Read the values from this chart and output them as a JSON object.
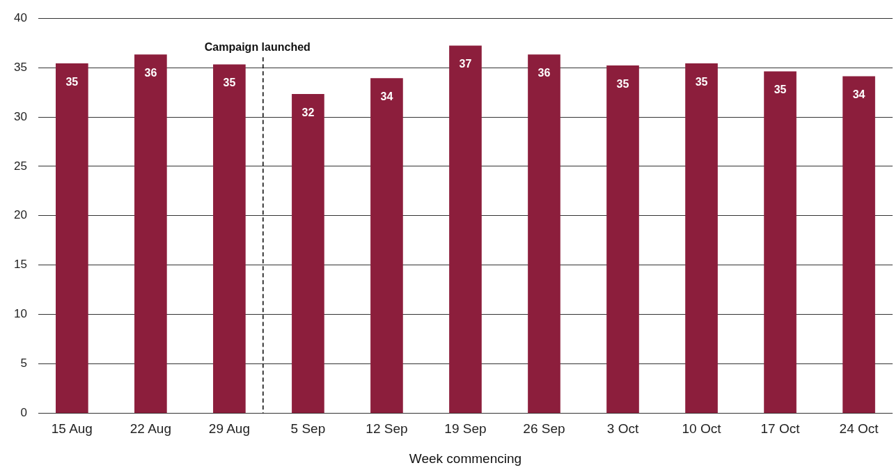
{
  "chart_data": {
    "type": "bar",
    "xlabel": "Week commencing",
    "x": [
      "--08-15",
      "--08-22",
      "--08-29",
      "--09-05",
      "--09-12",
      "--09-19",
      "--09-26",
      "--10-03",
      "--10-10",
      "--10-17",
      "--10-24"
    ],
    "values": [
      35.4,
      36.3,
      35.3,
      32.3,
      33.9,
      37.2,
      36.3,
      35.2,
      35.4,
      34.6,
      34.1
    ],
    "value_labels": [
      "35",
      "36",
      "35",
      "32",
      "34",
      "37",
      "36",
      "35",
      "35",
      "35",
      "34"
    ],
    "color": "#8c1e3c",
    "xlim": [
      "--08-12",
      "--10-27"
    ],
    "xticks": [
      {
        "value": "--08-15",
        "label": "15 Aug"
      },
      {
        "value": "--08-22",
        "label": "22 Aug"
      },
      {
        "value": "--08-29",
        "label": "29 Aug"
      },
      {
        "value": "--09-05",
        "label": "5 Sep"
      },
      {
        "value": "--09-12",
        "label": "12 Sep"
      },
      {
        "value": "--09-19",
        "label": "19 Sep"
      },
      {
        "value": "--09-26",
        "label": "26 Sep"
      },
      {
        "value": "--10-03",
        "label": "3 Oct"
      },
      {
        "value": "--10-10",
        "label": "10 Oct"
      },
      {
        "value": "--10-17",
        "label": "17 Oct"
      },
      {
        "value": "--10-24",
        "label": "24 Oct"
      }
    ],
    "ylim": [
      0,
      40
    ],
    "yticks": [
      0,
      5,
      10,
      15,
      20,
      25,
      30,
      35,
      40
    ],
    "grid": "y",
    "legend": false,
    "ref_lines": [
      {
        "axis": "x",
        "value": "--09-01",
        "label": "Campaign launched",
        "color": "#000000",
        "line_style": "dashed"
      }
    ]
  }
}
